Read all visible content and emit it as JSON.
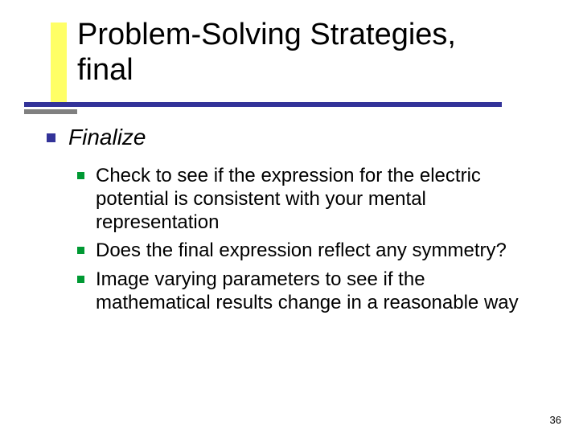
{
  "colors": {
    "background": "#ffffff",
    "title_text": "#000000",
    "body_text": "#000000",
    "deco_yellow": "#ffff66",
    "deco_navy": "#333399",
    "deco_gray": "#808080",
    "bullet_lvl1": "#333399",
    "bullet_lvl2": "#009933"
  },
  "typography": {
    "title_fontsize": 38,
    "lvl1_fontsize": 28,
    "lvl2_fontsize": 24,
    "pagenum_fontsize": 13,
    "font_family": "Verdana"
  },
  "title": {
    "line1": "Problem-Solving Strategies,",
    "line2": "final"
  },
  "body": {
    "lvl1": {
      "label": "Finalize"
    },
    "lvl2": [
      {
        "text": "Check to see if the expression for the electric potential is consistent with your mental representation"
      },
      {
        "text": "Does the final expression reflect any symmetry?"
      },
      {
        "text": "Image varying parameters to see if the mathematical results change in a reasonable way"
      }
    ]
  },
  "page_number": "36"
}
